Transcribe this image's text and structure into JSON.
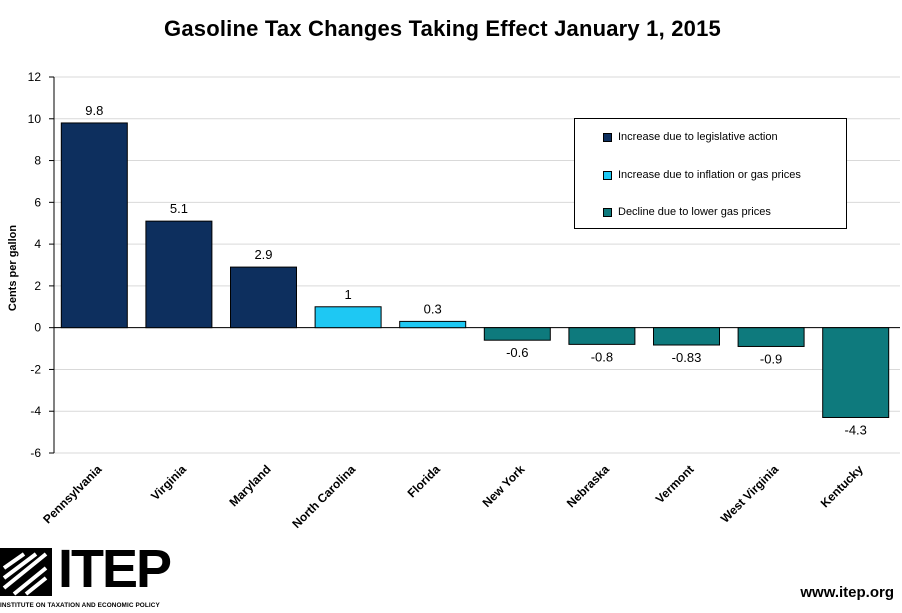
{
  "chart_data": {
    "type": "bar",
    "title": "Gasoline Tax Changes Taking Effect January 1, 2015",
    "ylabel": "Cents per gallon",
    "xlabel": "",
    "ylim": [
      -6,
      12
    ],
    "yticks": [
      12,
      10,
      8,
      6,
      4,
      2,
      0,
      -2,
      -4,
      -6
    ],
    "grid": true,
    "categories": [
      "Pennsylvania",
      "Virginia",
      "Maryland",
      "North Carolina",
      "Florida",
      "New York",
      "Nebraska",
      "Vermont",
      "West Virginia",
      "Kentucky"
    ],
    "values": [
      9.8,
      5.1,
      2.9,
      1,
      0.3,
      -0.6,
      -0.8,
      -0.83,
      -0.9,
      -4.3
    ],
    "value_labels": [
      "9.8",
      "5.1",
      "2.9",
      "1",
      "0.3",
      "-0.6",
      "-0.8",
      "-0.83",
      "-0.9",
      "-4.3"
    ],
    "bar_group": [
      0,
      0,
      0,
      1,
      1,
      2,
      2,
      2,
      2,
      2
    ],
    "legend": [
      {
        "label": "Increase due to legislative action",
        "color": "#0d2f5e"
      },
      {
        "label": "Increase due to inflation or gas prices",
        "color": "#1ec8f3"
      },
      {
        "label": "Decline due to lower gas prices",
        "color": "#0e7a7d"
      }
    ],
    "legend_position": "top-right"
  },
  "logo": {
    "name": "ITEP",
    "tagline": "INSTITUTE ON TAXATION AND ECONOMIC POLICY"
  },
  "footer": {
    "url": "www.itep.org"
  }
}
